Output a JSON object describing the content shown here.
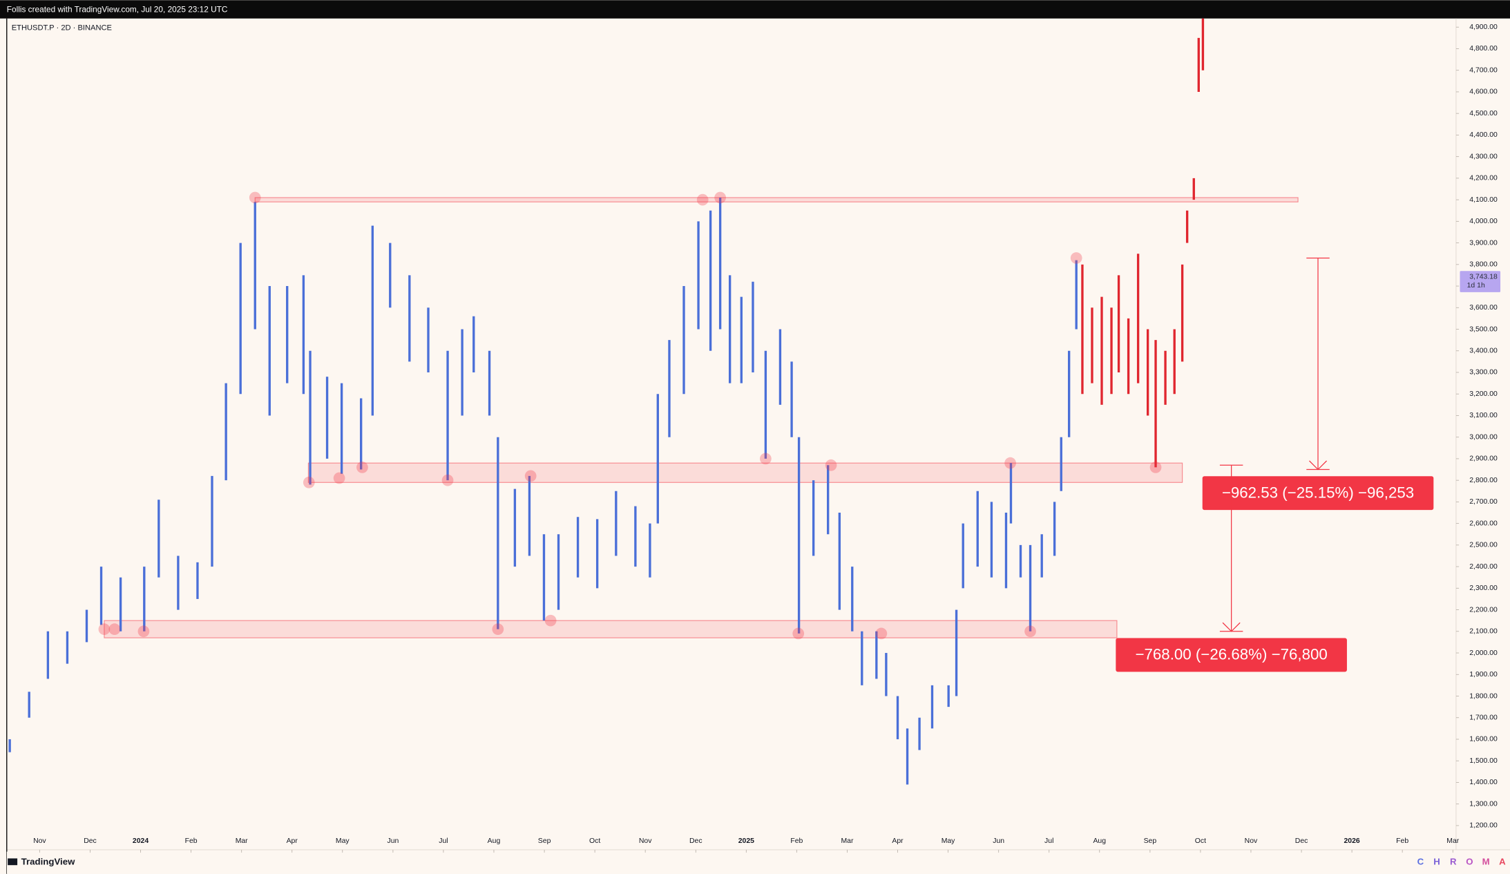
{
  "header": {
    "caption": "Follis created with TradingView.com, Jul 20, 2025 23:12 UTC"
  },
  "footer": {
    "brand": "TradingView",
    "watermark": [
      {
        "letter": "C",
        "color": "#5b6fe0"
      },
      {
        "letter": "H",
        "color": "#7a62d8"
      },
      {
        "letter": "R",
        "color": "#9a5ad0"
      },
      {
        "letter": "O",
        "color": "#b955c4"
      },
      {
        "letter": "M",
        "color": "#d4509e"
      },
      {
        "letter": "A",
        "color": "#e8475f"
      }
    ]
  },
  "chart_data": {
    "type": "hilo",
    "symbol": "ETHUSDT.P · 2D · BINANCE",
    "xlim": [
      2023.779,
      2026.172
    ],
    "ylim": [
      1088,
      4940
    ],
    "xticks": [
      {
        "value": 2023.8333,
        "label": "Nov"
      },
      {
        "value": 2023.9167,
        "label": "Dec"
      },
      2024,
      {
        "value": 2024.0833,
        "label": "Feb"
      },
      {
        "value": 2024.1667,
        "label": "Mar"
      },
      {
        "value": 2024.25,
        "label": "Apr"
      },
      {
        "value": 2024.3333,
        "label": "May"
      },
      {
        "value": 2024.4167,
        "label": "Jun"
      },
      {
        "value": 2024.5,
        "label": "Jul"
      },
      {
        "value": 2024.5833,
        "label": "Aug"
      },
      {
        "value": 2024.6667,
        "label": "Sep"
      },
      {
        "value": 2024.75,
        "label": "Oct"
      },
      {
        "value": 2024.8333,
        "label": "Nov"
      },
      {
        "value": 2024.9167,
        "label": "Dec"
      },
      2025,
      {
        "value": 2025.0833,
        "label": "Feb"
      },
      {
        "value": 2025.1667,
        "label": "Mar"
      },
      {
        "value": 2025.25,
        "label": "Apr"
      },
      {
        "value": 2025.3333,
        "label": "May"
      },
      {
        "value": 2025.4167,
        "label": "Jun"
      },
      {
        "value": 2025.5,
        "label": "Jul"
      },
      {
        "value": 2025.5833,
        "label": "Aug"
      },
      {
        "value": 2025.6667,
        "label": "Sep"
      },
      {
        "value": 2025.75,
        "label": "Oct"
      },
      {
        "value": 2025.8333,
        "label": "Nov"
      },
      {
        "value": 2025.9167,
        "label": "Dec"
      },
      2026,
      {
        "value": 2026.0833,
        "label": "Feb"
      },
      {
        "value": 2026.1667,
        "label": "Mar"
      }
    ],
    "yticks": [
      {
        "value": 1200,
        "label": "1,200.00"
      },
      {
        "value": 1300,
        "label": "1,300.00"
      },
      {
        "value": 1400,
        "label": "1,400.00"
      },
      {
        "value": 1500,
        "label": "1,500.00"
      },
      {
        "value": 1600,
        "label": "1,600.00"
      },
      {
        "value": 1700,
        "label": "1,700.00"
      },
      {
        "value": 1800,
        "label": "1,800.00"
      },
      {
        "value": 1900,
        "label": "1,900.00"
      },
      {
        "value": 2000,
        "label": "2,000.00"
      },
      {
        "value": 2100,
        "label": "2,100.00"
      },
      {
        "value": 2200,
        "label": "2,200.00"
      },
      {
        "value": 2300,
        "label": "2,300.00"
      },
      {
        "value": 2400,
        "label": "2,400.00"
      },
      {
        "value": 2500,
        "label": "2,500.00"
      },
      {
        "value": 2600,
        "label": "2,600.00"
      },
      {
        "value": 2700,
        "label": "2,700.00"
      },
      {
        "value": 2800,
        "label": "2,800.00"
      },
      {
        "value": 2900,
        "label": "2,900.00"
      },
      {
        "value": 3000,
        "label": "3,000.00"
      },
      {
        "value": 3100,
        "label": "3,100.00"
      },
      {
        "value": 3200,
        "label": "3,200.00"
      },
      {
        "value": 3300,
        "label": "3,300.00"
      },
      {
        "value": 3400,
        "label": "3,400.00"
      },
      {
        "value": 3500,
        "label": "3,500.00"
      },
      {
        "value": 3600,
        "label": "3,600.00"
      },
      {
        "value": 3700,
        "label": "3,700.00"
      },
      {
        "value": 3800,
        "label": "3,800.00"
      },
      {
        "value": 3900,
        "label": "3,900.00"
      },
      {
        "value": 4000,
        "label": "4,000.00"
      },
      {
        "value": 4100,
        "label": "4,100.00"
      },
      {
        "value": 4200,
        "label": "4,200.00"
      },
      {
        "value": 4300,
        "label": "4,300.00"
      },
      {
        "value": 4400,
        "label": "4,400.00"
      },
      {
        "value": 4500,
        "label": "4,500.00"
      },
      {
        "value": 4600,
        "label": "4,600.00"
      },
      {
        "value": 4700,
        "label": "4,700.00"
      },
      {
        "value": 4800,
        "label": "4,800.00"
      },
      {
        "value": 4900,
        "label": "4,900.00"
      }
    ],
    "series": [
      {
        "color": "#4a6fd8",
        "x": [
          2023.784,
          2023.816,
          2023.847,
          2023.879,
          2023.911,
          2023.935,
          2023.967,
          2024.006,
          2024.03,
          2024.062,
          2024.094,
          2024.118,
          2024.141,
          2024.165,
          2024.189,
          2024.213,
          2024.242,
          2024.269,
          2024.28,
          2024.308,
          2024.332,
          2024.364,
          2024.383,
          2024.412,
          2024.444,
          2024.475,
          2024.507,
          2024.531,
          2024.55,
          2024.576,
          2024.59,
          2024.618,
          2024.642,
          2024.666,
          2024.69,
          2024.722,
          2024.754,
          2024.785,
          2024.817,
          2024.841,
          2024.854,
          2024.873,
          2024.897,
          2024.921,
          2024.941,
          2024.957,
          2024.973,
          2024.992,
          2025.011,
          2025.032,
          2025.056,
          2025.075,
          2025.087,
          2025.111,
          2025.135,
          2025.154,
          2025.175,
          2025.191,
          2025.215,
          2025.231,
          2025.25,
          2025.266,
          2025.286,
          2025.307,
          2025.334,
          2025.347,
          2025.358,
          2025.382,
          2025.405,
          2025.429,
          2025.437,
          2025.453,
          2025.469,
          2025.488,
          2025.509,
          2025.52,
          2025.533,
          2025.545
        ],
        "high": [
          1600,
          1820,
          2100,
          2100,
          2200,
          2400,
          2350,
          2400,
          2710,
          2450,
          2420,
          2820,
          3250,
          3900,
          4090,
          3700,
          3700,
          3750,
          3400,
          3280,
          3250,
          3180,
          3980,
          3900,
          3750,
          3600,
          3400,
          3500,
          3560,
          3400,
          3000,
          2760,
          2820,
          2550,
          2550,
          2630,
          2620,
          2750,
          2680,
          2600,
          3200,
          3450,
          3700,
          4000,
          4050,
          4110,
          3750,
          3650,
          3720,
          3400,
          3500,
          3350,
          3000,
          2800,
          2870,
          2650,
          2400,
          2100,
          2100,
          2000,
          1800,
          1650,
          1700,
          1850,
          1850,
          2200,
          2600,
          2750,
          2700,
          2650,
          2880,
          2500,
          2500,
          2550,
          2700,
          3000,
          3400,
          3820
        ],
        "low": [
          1540,
          1700,
          1880,
          1950,
          2050,
          2130,
          2100,
          2100,
          2350,
          2200,
          2250,
          2400,
          2800,
          3200,
          3500,
          3100,
          3250,
          3200,
          2780,
          2900,
          2830,
          2850,
          3100,
          3600,
          3350,
          3300,
          2800,
          3100,
          3300,
          3100,
          2110,
          2400,
          2450,
          2150,
          2200,
          2350,
          2300,
          2450,
          2400,
          2350,
          2600,
          3000,
          3200,
          3500,
          3400,
          3500,
          3250,
          3250,
          3300,
          2900,
          3150,
          3000,
          2090,
          2450,
          2550,
          2200,
          2100,
          1850,
          1880,
          1800,
          1600,
          1390,
          1550,
          1650,
          1750,
          1800,
          2300,
          2400,
          2350,
          2300,
          2600,
          2350,
          2100,
          2350,
          2450,
          2750,
          3000,
          3500
        ]
      },
      {
        "color": "#e0262f",
        "x": [
          2025.555,
          2025.571,
          2025.587,
          2025.603,
          2025.615,
          2025.631,
          2025.647,
          2025.663,
          2025.676,
          2025.692,
          2025.707,
          2025.72,
          2025.728,
          2025.739,
          2025.747,
          2025.754
        ],
        "high": [
          3800,
          3600,
          3650,
          3600,
          3750,
          3550,
          3850,
          3500,
          3450,
          3400,
          3500,
          3800,
          4050,
          4200,
          4850,
          4940
        ],
        "low": [
          3200,
          3250,
          3150,
          3200,
          3300,
          3200,
          3250,
          3100,
          2860,
          3150,
          3200,
          3350,
          3900,
          4100,
          4600,
          4700
        ]
      }
    ],
    "zones": [
      {
        "low": 4090,
        "high": 4110,
        "x_start": 2024.189,
        "x_end": 2025.911
      },
      {
        "low": 2790,
        "high": 2880,
        "x_start": 2024.277,
        "x_end": 2025.72
      },
      {
        "low": 2070,
        "high": 2150,
        "x_start": 2023.94,
        "x_end": 2025.612
      }
    ],
    "touch_points": {
      "x": [
        2024.189,
        2024.928,
        2024.957,
        2025.545,
        2024.278,
        2024.328,
        2024.366,
        2024.507,
        2024.644,
        2025.032,
        2025.14,
        2025.436,
        2025.676,
        2023.94,
        2023.957,
        2024.005,
        2024.59,
        2024.677,
        2025.086,
        2025.223,
        2025.469
      ],
      "y": [
        4110,
        4100,
        4110,
        3830,
        2790,
        2810,
        2860,
        2800,
        2820,
        2900,
        2870,
        2880,
        2860,
        2110,
        2110,
        2100,
        2110,
        2150,
        2090,
        2090,
        2100
      ]
    },
    "measures": [
      {
        "x": 2025.944,
        "from": 3830,
        "to": 2850,
        "label": "−962.53 (−25.15%) −96,253"
      },
      {
        "x": 2025.801,
        "from": 2870,
        "to": 2100,
        "label": "−768.00 (−26.68%) −76,800"
      }
    ],
    "last_price": {
      "value": 3743.18,
      "label": "3,743.18"
    },
    "countdown": "1d 1h"
  }
}
